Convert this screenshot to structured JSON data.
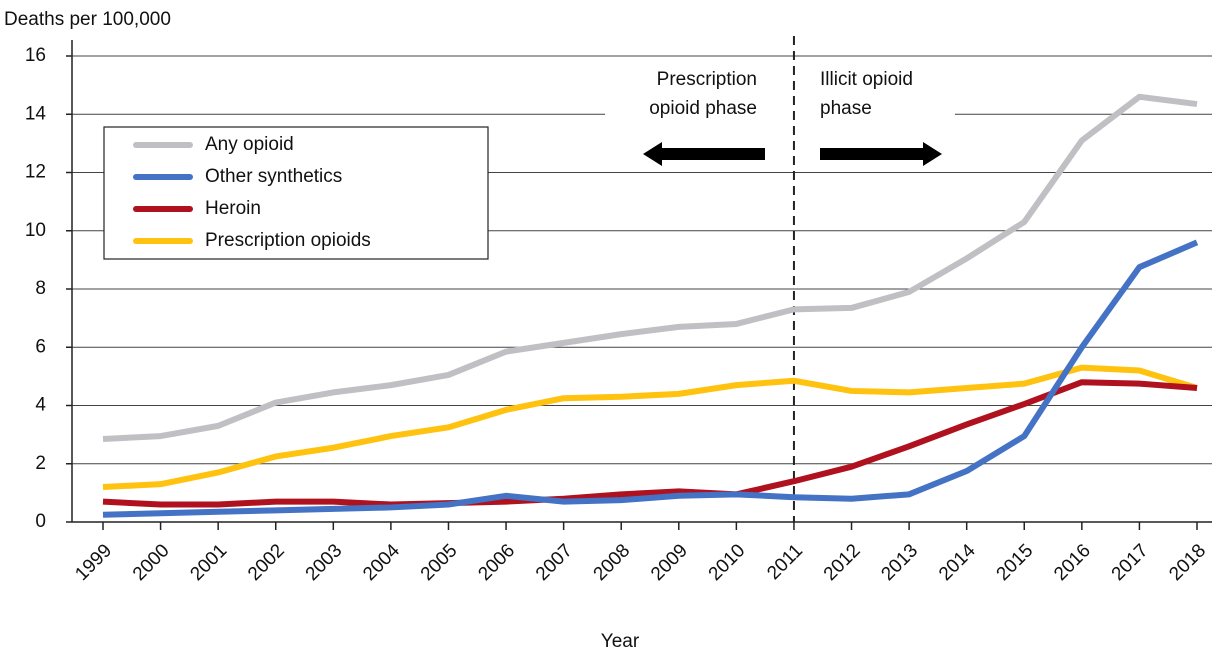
{
  "chart_data": {
    "type": "line",
    "y_label": "Deaths per 100,000",
    "x_label": "Year",
    "categories": [
      "1999",
      "2000",
      "2001",
      "2002",
      "2003",
      "2004",
      "2005",
      "2006",
      "2007",
      "2008",
      "2009",
      "2010",
      "2011",
      "2012",
      "2013",
      "2014",
      "2015",
      "2016",
      "2017",
      "2018"
    ],
    "series": [
      {
        "name": "Any opioid",
        "color": "#c0c0c4",
        "values": [
          2.85,
          2.95,
          3.3,
          4.1,
          4.45,
          4.7,
          5.05,
          5.85,
          6.15,
          6.45,
          6.7,
          6.8,
          7.3,
          7.35,
          7.9,
          9.05,
          10.3,
          13.1,
          14.6,
          14.35
        ]
      },
      {
        "name": "Other synthetics",
        "color": "#4472c4",
        "values": [
          0.25,
          0.3,
          0.35,
          0.4,
          0.45,
          0.5,
          0.6,
          0.9,
          0.7,
          0.75,
          0.9,
          0.95,
          0.85,
          0.8,
          0.95,
          1.75,
          2.95,
          6.0,
          8.75,
          9.6
        ]
      },
      {
        "name": "Heroin",
        "color": "#b0111e",
        "values": [
          0.7,
          0.6,
          0.6,
          0.7,
          0.7,
          0.6,
          0.65,
          0.7,
          0.8,
          0.95,
          1.05,
          0.95,
          1.4,
          1.9,
          2.6,
          3.35,
          4.05,
          4.8,
          4.75,
          4.6
        ]
      },
      {
        "name": "Prescription opioids",
        "color": "#ffc20e",
        "values": [
          1.2,
          1.3,
          1.7,
          2.25,
          2.55,
          2.95,
          3.25,
          3.85,
          4.25,
          4.3,
          4.4,
          4.7,
          4.85,
          4.5,
          4.45,
          4.6,
          4.75,
          5.3,
          5.2,
          4.6
        ]
      }
    ],
    "ylim": [
      0,
      16
    ],
    "yticks": [
      0,
      2,
      4,
      6,
      8,
      10,
      12,
      14,
      16
    ],
    "grid": true,
    "legend": "upper-left",
    "phase_split": "2011",
    "annotations": {
      "left": [
        "Prescription",
        "opioid phase"
      ],
      "right": [
        "Illicit opioid",
        "phase"
      ]
    }
  }
}
